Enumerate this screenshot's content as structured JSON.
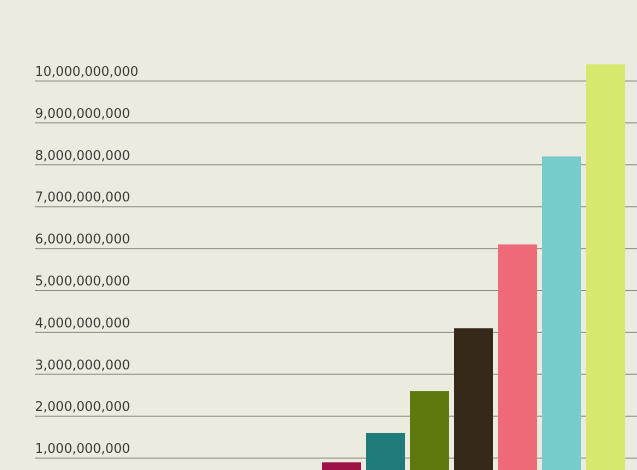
{
  "chart_data": {
    "type": "bar",
    "title": "",
    "xlabel": "",
    "ylabel": "",
    "ylim": [
      0,
      10400000000
    ],
    "grid": true,
    "y_ticks": [
      {
        "value": 1000000000,
        "label": "1,000,000,000"
      },
      {
        "value": 2000000000,
        "label": "2,000,000,000"
      },
      {
        "value": 3000000000,
        "label": "3,000,000,000"
      },
      {
        "value": 4000000000,
        "label": "4,000,000,000"
      },
      {
        "value": 5000000000,
        "label": "5,000,000,000"
      },
      {
        "value": 6000000000,
        "label": "6,000,000,000"
      },
      {
        "value": 7000000000,
        "label": "7,000,000,000"
      },
      {
        "value": 8000000000,
        "label": "8,000,000,000"
      },
      {
        "value": 9000000000,
        "label": "9,000,000,000"
      },
      {
        "value": 10000000000,
        "label": "10,000,000,000"
      }
    ],
    "values": [
      900000000,
      1600000000,
      2600000000,
      4100000000,
      6100000000,
      8200000000,
      10400000000
    ],
    "colors": [
      "#9c1246",
      "#1e7b7a",
      "#5f7a0c",
      "#37291a",
      "#ee6a78",
      "#78cbcb",
      "#d8e86e"
    ]
  }
}
